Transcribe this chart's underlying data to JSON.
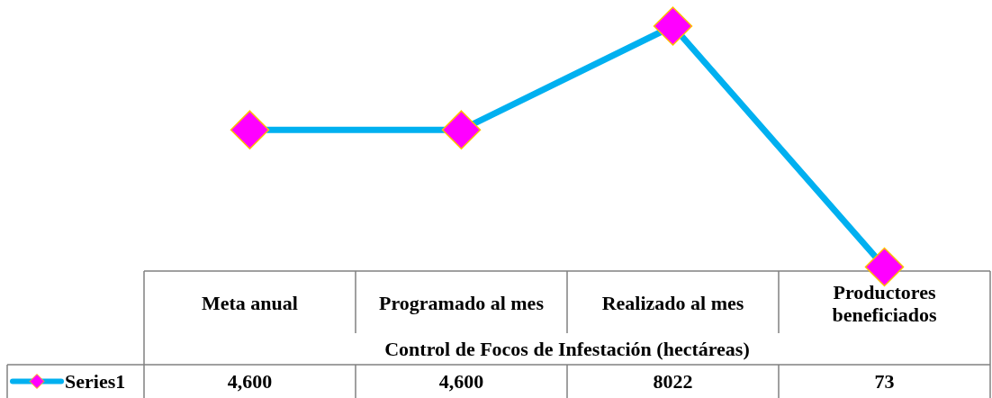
{
  "chart_data": {
    "type": "line",
    "xlabel": "Control de Focos de Infestación (hectáreas)",
    "categories": [
      "Meta anual",
      "Programado al mes",
      "Realizado al mes",
      "Productores beneficiados"
    ],
    "series": [
      {
        "name": "Series1",
        "color": "#00b0f0",
        "values": [
          4600,
          4600,
          8022,
          73
        ],
        "value_labels": [
          "4,600",
          "4,600",
          "8022",
          "73"
        ]
      }
    ],
    "tick_labels": "x",
    "marker": "diamond",
    "legend": "bottom"
  }
}
